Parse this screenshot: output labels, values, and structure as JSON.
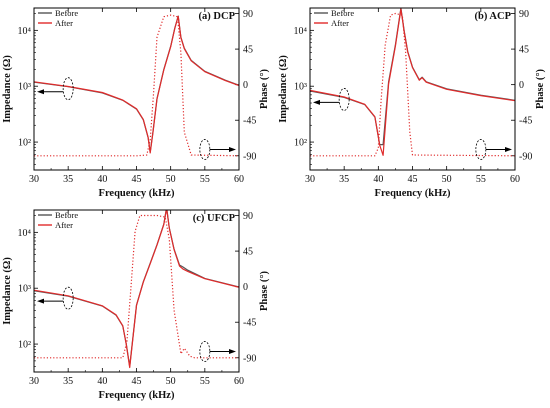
{
  "chart_data": [
    {
      "type": "line",
      "title": "(a) DCP",
      "xlabel": "Frequency (kHz)",
      "ylabel_left": "Impedance (Ω)",
      "ylabel_right": "Phase (°)",
      "xlim": [
        30,
        60
      ],
      "ylim_left_log10": [
        1.5,
        4.4
      ],
      "ylim_right": [
        -108,
        97
      ],
      "x_ticks": [
        "30",
        "35",
        "40",
        "45",
        "50",
        "55",
        "60"
      ],
      "y_left_ticks": [
        "10²",
        "10³",
        "10⁴"
      ],
      "y_right_ticks": [
        "90",
        "45",
        "0",
        "-45",
        "-90"
      ],
      "legend": [
        "Before",
        "After"
      ],
      "series": [
        {
          "name": "Before",
          "kind": "impedance",
          "x": [
            30,
            35,
            40,
            43,
            45,
            46,
            46.7,
            47,
            47.4,
            48,
            49,
            50,
            50.6,
            51.1,
            51.5,
            52,
            53,
            55,
            58,
            60
          ],
          "y": [
            1180,
            980,
            760,
            560,
            390,
            250,
            120,
            66,
            150,
            600,
            2000,
            5200,
            11000,
            18000,
            7500,
            4800,
            2900,
            1850,
            1280,
            1040
          ]
        },
        {
          "name": "After",
          "kind": "impedance",
          "x": [
            30,
            35,
            40,
            43,
            45,
            46,
            46.7,
            47,
            47.4,
            48,
            49,
            50,
            50.6,
            51.1,
            51.5,
            52,
            53,
            55,
            58,
            60
          ],
          "y": [
            1200,
            990,
            770,
            565,
            395,
            255,
            122,
            64,
            145,
            590,
            1950,
            5100,
            10800,
            17800,
            7400,
            4700,
            2850,
            1820,
            1260,
            1030
          ]
        },
        {
          "name": "After",
          "kind": "phase",
          "x": [
            30,
            45,
            46.5,
            47,
            47.5,
            48,
            49,
            50,
            51,
            51.5,
            52,
            53,
            60
          ],
          "y": [
            -90,
            -90,
            -89,
            -70,
            -10,
            60,
            86,
            88,
            86,
            40,
            -60,
            -89,
            -90
          ]
        }
      ]
    },
    {
      "type": "line",
      "title": "(b) ACP",
      "xlabel": "Frequency (kHz)",
      "ylabel_left": "Impedance (Ω)",
      "ylabel_right": "Phase (°)",
      "xlim": [
        30,
        60
      ],
      "ylim_left_log10": [
        1.5,
        4.4
      ],
      "ylim_right": [
        -108,
        97
      ],
      "x_ticks": [
        "30",
        "35",
        "40",
        "45",
        "50",
        "55",
        "60"
      ],
      "y_left_ticks": [
        "10²",
        "10³",
        "10⁴"
      ],
      "y_right_ticks": [
        "90",
        "45",
        "0",
        "-45",
        "-90"
      ],
      "legend": [
        "Before",
        "After"
      ],
      "series": [
        {
          "name": "Before",
          "kind": "impedance",
          "x": [
            30,
            35,
            38,
            39.5,
            40.2,
            40.7,
            41.5,
            42.5,
            43.3,
            43.8,
            44.3,
            45,
            46,
            46.4,
            47,
            50,
            55,
            60
          ],
          "y": [
            820,
            630,
            470,
            280,
            90,
            90,
            1200,
            5500,
            25000,
            9500,
            4200,
            2200,
            1300,
            1450,
            1200,
            900,
            690,
            560
          ]
        },
        {
          "name": "After",
          "kind": "impedance",
          "x": [
            30,
            35,
            38,
            39.5,
            40.2,
            40.7,
            41.5,
            42.5,
            43.3,
            43.8,
            44.3,
            45,
            46,
            46.4,
            47,
            50,
            55,
            60
          ],
          "y": [
            840,
            640,
            475,
            285,
            88,
            58,
            1100,
            5200,
            24000,
            9200,
            4100,
            2150,
            1280,
            1420,
            1180,
            880,
            680,
            550
          ]
        },
        {
          "name": "After",
          "kind": "phase",
          "x": [
            30,
            39.5,
            40,
            40.4,
            41,
            41.8,
            42.5,
            43.5,
            44,
            44.6,
            45,
            60
          ],
          "y": [
            -90,
            -90,
            -80,
            -20,
            50,
            88,
            90,
            88,
            40,
            -60,
            -89,
            -90
          ]
        }
      ]
    },
    {
      "type": "line",
      "title": "(c) UFCP",
      "xlabel": "Frequency (kHz)",
      "ylabel_left": "Impedance (Ω)",
      "ylabel_right": "Phase (°)",
      "xlim": [
        30,
        60
      ],
      "ylim_left_log10": [
        1.5,
        4.4
      ],
      "ylim_right": [
        -108,
        97
      ],
      "x_ticks": [
        "30",
        "35",
        "40",
        "45",
        "50",
        "55",
        "60"
      ],
      "y_left_ticks": [
        "10²",
        "10³",
        "10⁴"
      ],
      "y_right_ticks": [
        "90",
        "45",
        "0",
        "-45",
        "-90"
      ],
      "legend": [
        "Before",
        "After"
      ],
      "series": [
        {
          "name": "Before",
          "kind": "impedance",
          "x": [
            30,
            35,
            40,
            42,
            43,
            43.5,
            44,
            45,
            46,
            47,
            48,
            49,
            49.4,
            49.8,
            50.5,
            51.3,
            51.8,
            52.5,
            55,
            60
          ],
          "y": [
            900,
            720,
            480,
            330,
            210,
            100,
            40,
            500,
            1300,
            2800,
            6000,
            14000,
            28000,
            12000,
            5000,
            2600,
            2400,
            2100,
            1500,
            1050
          ]
        },
        {
          "name": "After",
          "kind": "impedance",
          "x": [
            30,
            35,
            40,
            42,
            43,
            43.5,
            44,
            45,
            46,
            47,
            48,
            49,
            49.4,
            49.8,
            50.5,
            51.3,
            51.8,
            52.5,
            55,
            60
          ],
          "y": [
            920,
            730,
            485,
            335,
            212,
            98,
            38,
            490,
            1280,
            2750,
            5900,
            13800,
            27000,
            11800,
            4900,
            2500,
            2200,
            2000,
            1480,
            1040
          ]
        },
        {
          "name": "After",
          "kind": "phase",
          "x": [
            30,
            43,
            43.6,
            44.2,
            44.8,
            45.5,
            48,
            49.2,
            49.8,
            50.5,
            51.5,
            52,
            52.4,
            52.8,
            53.5,
            60
          ],
          "y": [
            -90,
            -90,
            -70,
            0,
            70,
            90,
            90,
            88,
            60,
            -30,
            -85,
            -78,
            -83,
            -88,
            -90,
            -90
          ]
        }
      ]
    }
  ]
}
